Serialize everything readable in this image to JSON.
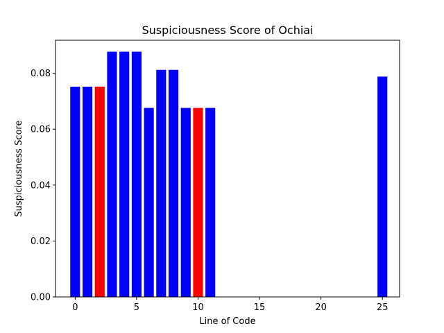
{
  "chart_data": {
    "type": "bar",
    "title": "Suspiciousness Score of Ochiai",
    "xlabel": "Line of Code",
    "ylabel": "Suspiciousness Score",
    "xlim": [
      -1.6,
      26.4
    ],
    "ylim": [
      0,
      0.0918
    ],
    "xticks": [
      0,
      5,
      10,
      15,
      20,
      25
    ],
    "yticks": [
      0.0,
      0.02,
      0.04,
      0.06,
      0.08
    ],
    "ytick_labels": [
      "0.00",
      "0.02",
      "0.04",
      "0.06",
      "0.08"
    ],
    "grid": false,
    "legend": false,
    "bar_width": 0.8,
    "colors": {
      "normal": "#0000ff",
      "highlight": "#ff0000"
    },
    "bars": [
      {
        "x": 0,
        "value": 0.0752,
        "color": "#0000ff"
      },
      {
        "x": 1,
        "value": 0.0752,
        "color": "#0000ff"
      },
      {
        "x": 2,
        "value": 0.0752,
        "color": "#ff0000"
      },
      {
        "x": 3,
        "value": 0.0877,
        "color": "#0000ff"
      },
      {
        "x": 4,
        "value": 0.0877,
        "color": "#0000ff"
      },
      {
        "x": 5,
        "value": 0.0877,
        "color": "#0000ff"
      },
      {
        "x": 6,
        "value": 0.0676,
        "color": "#0000ff"
      },
      {
        "x": 7,
        "value": 0.0812,
        "color": "#0000ff"
      },
      {
        "x": 8,
        "value": 0.0812,
        "color": "#0000ff"
      },
      {
        "x": 9,
        "value": 0.0676,
        "color": "#0000ff"
      },
      {
        "x": 10,
        "value": 0.0676,
        "color": "#ff0000"
      },
      {
        "x": 11,
        "value": 0.0676,
        "color": "#0000ff"
      },
      {
        "x": 25,
        "value": 0.0788,
        "color": "#0000ff"
      }
    ]
  }
}
